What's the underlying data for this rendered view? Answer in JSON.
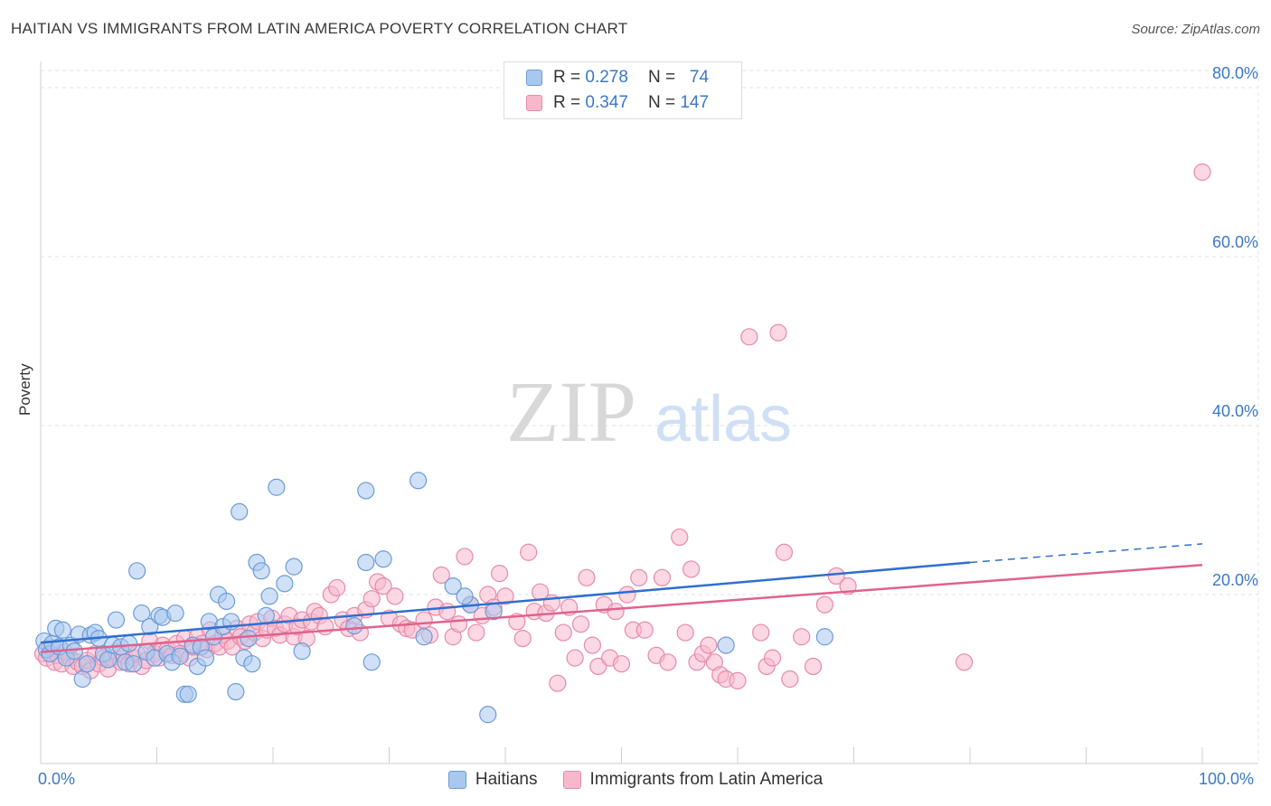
{
  "header": {
    "title": "HAITIAN VS IMMIGRANTS FROM LATIN AMERICA POVERTY CORRELATION CHART",
    "source": "Source: ZipAtlas.com"
  },
  "watermark": {
    "zip": "ZIP",
    "atlas": "atlas"
  },
  "legend_top": {
    "rows": [
      {
        "r_label": "R =",
        "r_value": "0.278",
        "n_label": "N =",
        "n_value": "74"
      },
      {
        "r_label": "R =",
        "r_value": "0.347",
        "n_label": "N =",
        "n_value": "147"
      }
    ]
  },
  "legend_bottom": {
    "items": [
      {
        "label": "Haitians"
      },
      {
        "label": "Immigrants from Latin America"
      }
    ]
  },
  "axis": {
    "x_min_label": "0.0%",
    "x_max_label": "100.0%",
    "y_tick_labels": [
      "20.0%",
      "40.0%",
      "60.0%",
      "80.0%"
    ]
  },
  "chart_data": {
    "type": "scatter",
    "title": "HAITIAN VS IMMIGRANTS FROM LATIN AMERICA POVERTY CORRELATION CHART",
    "xlabel": "",
    "ylabel": "Poverty",
    "xlim": [
      0,
      100
    ],
    "ylim": [
      0,
      85
    ],
    "y_ticks": [
      20,
      40,
      60,
      80
    ],
    "grid": true,
    "legend_position": "top-center",
    "colors": {
      "haitians_fill": "#a9c8f0",
      "haitians_stroke": "#6b9bd8",
      "haitians_line": "#2f6fd0",
      "latin_fill": "#f7b8cc",
      "latin_stroke": "#e68aa8",
      "latin_line": "#e0628c",
      "tick_label": "#3b78c7"
    },
    "series": [
      {
        "name": "Haitians",
        "r": 0.278,
        "n": 74,
        "trend": {
          "x0": 0,
          "y0": 14.3,
          "x1": 80,
          "y1": 23.8,
          "dash_to_x": 100,
          "dash_to_y": 26.0
        },
        "points": [
          [
            0.3,
            14.5
          ],
          [
            0.5,
            13.5
          ],
          [
            0.8,
            13.0
          ],
          [
            1.0,
            14.2
          ],
          [
            1.3,
            16.0
          ],
          [
            1.6,
            13.8
          ],
          [
            1.9,
            15.8
          ],
          [
            2.2,
            12.5
          ],
          [
            2.6,
            14.0
          ],
          [
            2.9,
            13.3
          ],
          [
            3.3,
            15.3
          ],
          [
            3.6,
            10.0
          ],
          [
            4.0,
            11.8
          ],
          [
            4.3,
            15.2
          ],
          [
            4.7,
            15.5
          ],
          [
            5.0,
            14.8
          ],
          [
            5.4,
            13.0
          ],
          [
            5.8,
            12.3
          ],
          [
            6.2,
            14.0
          ],
          [
            6.5,
            17.0
          ],
          [
            6.9,
            13.8
          ],
          [
            7.3,
            12.0
          ],
          [
            7.6,
            14.2
          ],
          [
            8.0,
            11.8
          ],
          [
            8.3,
            22.8
          ],
          [
            8.7,
            17.8
          ],
          [
            9.1,
            13.2
          ],
          [
            9.4,
            16.2
          ],
          [
            9.8,
            12.5
          ],
          [
            10.2,
            17.5
          ],
          [
            10.5,
            17.3
          ],
          [
            10.9,
            13.0
          ],
          [
            11.3,
            12.0
          ],
          [
            11.6,
            17.8
          ],
          [
            12.0,
            12.7
          ],
          [
            12.4,
            8.2
          ],
          [
            12.7,
            8.2
          ],
          [
            13.1,
            14.0
          ],
          [
            13.5,
            11.5
          ],
          [
            13.8,
            13.8
          ],
          [
            14.2,
            12.5
          ],
          [
            14.5,
            16.8
          ],
          [
            14.9,
            15.0
          ],
          [
            15.3,
            20.0
          ],
          [
            15.7,
            16.2
          ],
          [
            16.0,
            19.2
          ],
          [
            16.4,
            16.8
          ],
          [
            16.8,
            8.5
          ],
          [
            17.1,
            29.8
          ],
          [
            17.5,
            12.5
          ],
          [
            17.9,
            14.8
          ],
          [
            18.2,
            11.8
          ],
          [
            18.6,
            23.8
          ],
          [
            19.0,
            22.8
          ],
          [
            19.4,
            17.5
          ],
          [
            19.7,
            19.8
          ],
          [
            20.3,
            32.7
          ],
          [
            21.0,
            21.3
          ],
          [
            21.8,
            23.3
          ],
          [
            22.5,
            13.3
          ],
          [
            27.0,
            16.3
          ],
          [
            28.0,
            23.8
          ],
          [
            28.5,
            12.0
          ],
          [
            28.0,
            32.3
          ],
          [
            29.5,
            24.2
          ],
          [
            32.5,
            33.5
          ],
          [
            33.0,
            15.0
          ],
          [
            35.5,
            21.0
          ],
          [
            37.0,
            18.8
          ],
          [
            38.5,
            5.8
          ],
          [
            39.0,
            18.0
          ],
          [
            59.0,
            14.0
          ],
          [
            67.5,
            15.0
          ],
          [
            36.5,
            19.8
          ]
        ]
      },
      {
        "name": "Immigrants from Latin America",
        "r": 0.347,
        "n": 147,
        "trend": {
          "x0": 0,
          "y0": 13.2,
          "x1": 100,
          "y1": 23.5
        },
        "points": [
          [
            0.2,
            13.0
          ],
          [
            0.5,
            12.5
          ],
          [
            0.8,
            13.8
          ],
          [
            1.2,
            12.0
          ],
          [
            1.5,
            12.8
          ],
          [
            1.8,
            11.8
          ],
          [
            2.1,
            13.2
          ],
          [
            2.5,
            12.5
          ],
          [
            2.8,
            11.5
          ],
          [
            3.2,
            12.0
          ],
          [
            3.6,
            11.5
          ],
          [
            4.0,
            12.2
          ],
          [
            4.3,
            11.0
          ],
          [
            4.7,
            13.0
          ],
          [
            5.0,
            11.8
          ],
          [
            5.4,
            12.5
          ],
          [
            5.8,
            11.2
          ],
          [
            6.1,
            12.5
          ],
          [
            6.5,
            13.2
          ],
          [
            6.9,
            12.0
          ],
          [
            7.2,
            12.8
          ],
          [
            7.6,
            11.8
          ],
          [
            8.0,
            12.5
          ],
          [
            8.3,
            13.0
          ],
          [
            8.7,
            11.5
          ],
          [
            9.1,
            12.2
          ],
          [
            9.4,
            14.5
          ],
          [
            9.8,
            13.0
          ],
          [
            10.2,
            12.5
          ],
          [
            10.5,
            14.0
          ],
          [
            10.9,
            13.5
          ],
          [
            11.3,
            12.8
          ],
          [
            11.7,
            14.2
          ],
          [
            12.0,
            13.0
          ],
          [
            12.4,
            14.8
          ],
          [
            12.8,
            12.5
          ],
          [
            13.1,
            13.8
          ],
          [
            13.5,
            15.0
          ],
          [
            13.9,
            14.2
          ],
          [
            14.3,
            13.5
          ],
          [
            14.6,
            15.8
          ],
          [
            15.0,
            14.2
          ],
          [
            15.4,
            13.8
          ],
          [
            15.7,
            15.2
          ],
          [
            16.1,
            14.5
          ],
          [
            16.5,
            13.8
          ],
          [
            16.9,
            16.0
          ],
          [
            17.2,
            15.0
          ],
          [
            17.6,
            14.5
          ],
          [
            18.0,
            16.5
          ],
          [
            18.4,
            15.5
          ],
          [
            18.7,
            16.8
          ],
          [
            19.1,
            14.8
          ],
          [
            19.5,
            15.8
          ],
          [
            19.9,
            17.2
          ],
          [
            20.2,
            16.0
          ],
          [
            20.6,
            15.2
          ],
          [
            21.0,
            16.5
          ],
          [
            21.4,
            17.5
          ],
          [
            21.8,
            15.0
          ],
          [
            22.1,
            16.2
          ],
          [
            22.5,
            17.0
          ],
          [
            22.9,
            14.8
          ],
          [
            23.3,
            16.8
          ],
          [
            23.6,
            18.0
          ],
          [
            24.0,
            17.5
          ],
          [
            24.5,
            16.2
          ],
          [
            25.0,
            20.0
          ],
          [
            25.5,
            20.8
          ],
          [
            26.0,
            17.0
          ],
          [
            26.5,
            16.0
          ],
          [
            27.0,
            17.5
          ],
          [
            27.5,
            15.5
          ],
          [
            28.0,
            18.2
          ],
          [
            28.5,
            19.5
          ],
          [
            29.0,
            21.5
          ],
          [
            29.5,
            21.0
          ],
          [
            30.0,
            17.2
          ],
          [
            30.5,
            19.8
          ],
          [
            31.0,
            16.5
          ],
          [
            31.5,
            16.0
          ],
          [
            32.0,
            15.8
          ],
          [
            33.0,
            17.0
          ],
          [
            33.5,
            15.2
          ],
          [
            34.0,
            18.5
          ],
          [
            34.5,
            22.3
          ],
          [
            35.0,
            18.0
          ],
          [
            35.5,
            15.0
          ],
          [
            36.0,
            16.5
          ],
          [
            36.5,
            24.5
          ],
          [
            37.0,
            18.8
          ],
          [
            37.5,
            15.5
          ],
          [
            38.0,
            17.5
          ],
          [
            38.5,
            20.0
          ],
          [
            39.0,
            18.5
          ],
          [
            39.5,
            22.5
          ],
          [
            40.0,
            19.8
          ],
          [
            41.0,
            16.8
          ],
          [
            41.5,
            14.8
          ],
          [
            42.0,
            25.0
          ],
          [
            42.5,
            18.0
          ],
          [
            43.0,
            20.3
          ],
          [
            43.5,
            17.8
          ],
          [
            44.0,
            19.0
          ],
          [
            44.5,
            9.5
          ],
          [
            45.0,
            15.5
          ],
          [
            45.5,
            18.5
          ],
          [
            46.0,
            12.5
          ],
          [
            46.5,
            16.5
          ],
          [
            47.0,
            22.0
          ],
          [
            47.5,
            14.0
          ],
          [
            48.0,
            11.5
          ],
          [
            48.5,
            18.8
          ],
          [
            49.0,
            12.5
          ],
          [
            49.5,
            18.0
          ],
          [
            50.0,
            11.8
          ],
          [
            50.5,
            20.0
          ],
          [
            51.0,
            15.8
          ],
          [
            51.5,
            22.0
          ],
          [
            52.0,
            15.8
          ],
          [
            53.0,
            12.8
          ],
          [
            53.5,
            22.0
          ],
          [
            54.0,
            12.0
          ],
          [
            55.0,
            26.8
          ],
          [
            55.5,
            15.5
          ],
          [
            56.0,
            23.0
          ],
          [
            56.5,
            12.0
          ],
          [
            57.0,
            13.0
          ],
          [
            57.5,
            14.0
          ],
          [
            58.0,
            12.0
          ],
          [
            58.5,
            10.5
          ],
          [
            59.0,
            10.0
          ],
          [
            60.0,
            9.8
          ],
          [
            61.0,
            50.5
          ],
          [
            62.0,
            15.5
          ],
          [
            62.5,
            11.5
          ],
          [
            63.0,
            12.5
          ],
          [
            63.5,
            51.0
          ],
          [
            64.0,
            25.0
          ],
          [
            64.5,
            10.0
          ],
          [
            65.5,
            15.0
          ],
          [
            66.5,
            11.5
          ],
          [
            67.5,
            18.8
          ],
          [
            68.5,
            22.2
          ],
          [
            69.5,
            21.0
          ],
          [
            79.5,
            12.0
          ],
          [
            100.0,
            70.0
          ]
        ]
      }
    ]
  }
}
